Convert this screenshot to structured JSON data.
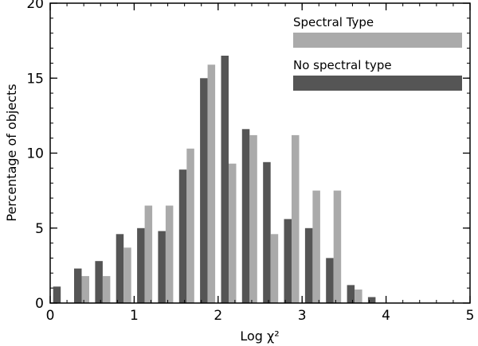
{
  "chart_data": {
    "type": "bar",
    "xlabel": "Log χ²",
    "ylabel": "Percentage of objects",
    "xlim": [
      0,
      5
    ],
    "ylim": [
      0,
      20
    ],
    "xticks": [
      "0",
      "1",
      "2",
      "3",
      "4",
      "5"
    ],
    "yticks": [
      "0",
      "5",
      "10",
      "15",
      "20"
    ],
    "grid": false,
    "legend": "top-right",
    "bin_width": 0.25,
    "bin_centers": [
      0.125,
      0.375,
      0.625,
      0.875,
      1.125,
      1.375,
      1.625,
      1.875,
      2.125,
      2.375,
      2.625,
      2.875,
      3.125,
      3.375,
      3.625,
      3.875,
      4.125,
      4.375,
      4.625
    ],
    "series": [
      {
        "name": "No spectral type",
        "color": "#555555",
        "values": [
          1.1,
          2.3,
          2.8,
          4.6,
          5.0,
          4.8,
          8.9,
          15.0,
          16.5,
          11.6,
          9.4,
          5.6,
          5.0,
          3.0,
          1.2,
          0.4,
          0.0,
          0.0,
          0.0
        ]
      },
      {
        "name": "Spectral Type",
        "color": "#aaaaaa",
        "values": [
          0.0,
          1.8,
          1.8,
          3.7,
          6.5,
          6.5,
          10.3,
          15.9,
          9.3,
          11.2,
          4.6,
          11.2,
          7.5,
          7.5,
          0.9,
          0.0,
          0.0,
          0.0,
          0.0
        ]
      }
    ]
  }
}
